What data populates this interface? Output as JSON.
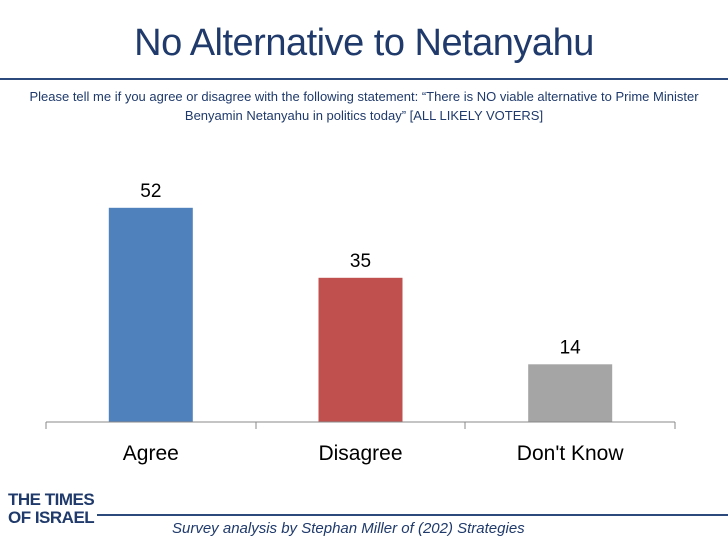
{
  "header": {
    "title": "No Alternative to Netanyahu",
    "subtitle": "Please tell me if you agree or disagree with the following statement: “There is NO viable alternative to Prime Minister Benyamin Netanyahu in politics today” [ALL LIKELY VOTERS]"
  },
  "chart_data": {
    "type": "bar",
    "categories": [
      "Agree",
      "Disagree",
      "Don't Know"
    ],
    "values": [
      52,
      35,
      14
    ],
    "colors": [
      "#4f81bd",
      "#c0504d",
      "#a5a5a5"
    ],
    "ylim": [
      0,
      60
    ],
    "grid": false,
    "legend": "none"
  },
  "logo": {
    "line1": "THE TIMES",
    "line2": "OF ISRAEL"
  },
  "footer": {
    "credit": "Survey analysis by Stephan Miller of (202) Strategies"
  }
}
